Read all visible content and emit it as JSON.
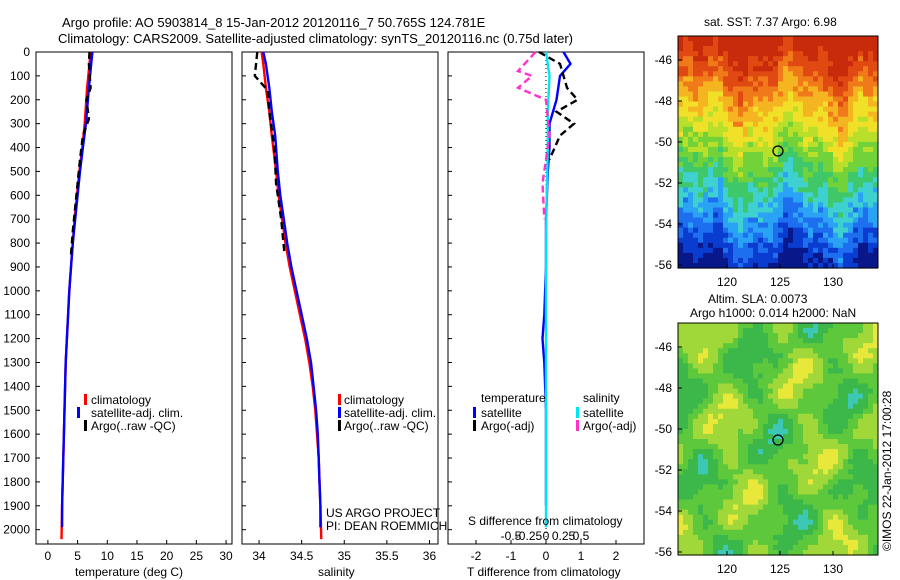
{
  "title_line1": "Argo profile: AO 5903814_8 15-Jan-2012 20120116_7 50.765S 124.781E",
  "title_line2": "Climatology: CARS2009. Satellite-adjusted climatology: synTS_20120116.nc (0.75d later)",
  "panel_depth_ticks": [
    "0",
    "100",
    "200",
    "300",
    "400",
    "500",
    "600",
    "700",
    "800",
    "900",
    "1000",
    "1100",
    "1200",
    "1300",
    "1400",
    "1500",
    "1600",
    "1700",
    "1800",
    "1900",
    "2000"
  ],
  "colors": {
    "climatology": "#ff0000",
    "satellite": "#0000ff",
    "argo": "#000000",
    "sal_satellite": "#00e5ee",
    "sal_argo": "#ff33cc"
  },
  "temp_panel": {
    "xlabel": "temperature (deg C)",
    "xticks": [
      "0",
      "5",
      "10",
      "15",
      "20",
      "25",
      "30"
    ],
    "legend": [
      "climatology",
      "satellite-adj. clim.",
      "Argo(..raw -QC)"
    ]
  },
  "sal_panel": {
    "xlabel": "salinity",
    "xticks": [
      "34",
      "34.5",
      "35",
      "35.5",
      "36"
    ],
    "legend": [
      "climatology",
      "satellite-adj. clim.",
      "Argo(..raw -QC)"
    ],
    "note1": "US ARGO PROJECT",
    "note2": "PI: DEAN ROEMMICH"
  },
  "diff_panel": {
    "xlabel": "T difference from climatology",
    "xlabel_top": "S difference from climatology",
    "t_ticks": [
      "-2",
      "-1",
      "0",
      "1",
      "2"
    ],
    "s_ticks": [
      "-0.5",
      "-0.25",
      "0",
      "0.25",
      "0.5"
    ],
    "legend_head_t": "temperature",
    "legend_head_s": "salinity",
    "legend_t": [
      "satellite",
      "Argo(-adj)"
    ],
    "legend_s": [
      "satellite",
      "Argo(-adj)"
    ]
  },
  "map_sst": {
    "title": "sat. SST: 7.37 Argo: 6.98",
    "yticks": [
      "-46",
      "-48",
      "-50",
      "-52",
      "-54",
      "-56"
    ],
    "xticks": [
      "120",
      "125",
      "130"
    ]
  },
  "map_sla": {
    "title1": "Altim. SLA: 0.0073",
    "title2": "Argo h1000: 0.014 h2000: NaN",
    "yticks": [
      "-46",
      "-48",
      "-50",
      "-52",
      "-54",
      "-56"
    ],
    "xticks": [
      "120",
      "125",
      "130"
    ],
    "stamp": "©IMOS 22-Jan-2012 17:00:28"
  },
  "chart_data": [
    {
      "type": "line",
      "xlabel": "temperature (deg C)",
      "ylabel": "",
      "xlim": [
        -2,
        31
      ],
      "ylim": [
        2060,
        0
      ],
      "series": [
        {
          "name": "climatology",
          "x": [
            7.2,
            7.0,
            6.6,
            6.2,
            5.8,
            5.3,
            4.9,
            4.5,
            4.2,
            3.9,
            3.6,
            3.4,
            3.2,
            3.0,
            2.9,
            2.8,
            2.7,
            2.6,
            2.5,
            2.4,
            2.3
          ],
          "y": [
            0,
            50,
            150,
            300,
            400,
            500,
            600,
            700,
            800,
            900,
            1000,
            1100,
            1200,
            1300,
            1400,
            1500,
            1600,
            1700,
            1800,
            1900,
            2040
          ]
        },
        {
          "name": "satellite-adj. clim.",
          "x": [
            7.5,
            7.3,
            6.9,
            6.4,
            5.9,
            5.4,
            5.0,
            4.6,
            4.2,
            3.9,
            3.6,
            3.4,
            3.2,
            3.0,
            2.9,
            2.8,
            2.7,
            2.6,
            2.5,
            2.4,
            2.4
          ],
          "y": [
            0,
            50,
            150,
            300,
            400,
            500,
            600,
            700,
            800,
            900,
            1000,
            1100,
            1200,
            1300,
            1400,
            1500,
            1600,
            1700,
            1800,
            1900,
            1990
          ]
        },
        {
          "name": "Argo(..raw -QC)",
          "x": [
            7.0,
            6.9,
            7.2,
            6.5,
            6.9,
            5.9,
            5.4,
            5.0,
            4.6,
            4.2,
            3.9
          ],
          "y": [
            0,
            50,
            150,
            200,
            280,
            350,
            450,
            550,
            650,
            750,
            850
          ]
        }
      ]
    },
    {
      "type": "line",
      "xlabel": "salinity",
      "ylabel": "",
      "xlim": [
        33.8,
        36.1
      ],
      "ylim": [
        2060,
        0
      ],
      "series": [
        {
          "name": "climatology",
          "x": [
            34.03,
            34.05,
            34.08,
            34.12,
            34.15,
            34.2,
            34.23,
            34.27,
            34.31,
            34.36,
            34.42,
            34.48,
            34.54,
            34.59,
            34.63,
            34.66,
            34.68,
            34.7,
            34.71,
            34.72,
            34.73
          ],
          "y": [
            0,
            50,
            150,
            250,
            350,
            500,
            600,
            700,
            800,
            900,
            1000,
            1100,
            1200,
            1300,
            1400,
            1500,
            1600,
            1700,
            1800,
            1900,
            2040
          ]
        },
        {
          "name": "satellite-adj. clim.",
          "x": [
            34.05,
            34.08,
            34.12,
            34.15,
            34.19,
            34.22,
            34.25,
            34.29,
            34.33,
            34.38,
            34.44,
            34.5,
            34.56,
            34.61,
            34.64,
            34.67,
            34.69,
            34.7,
            34.71,
            34.72,
            34.72
          ],
          "y": [
            0,
            50,
            150,
            250,
            350,
            500,
            600,
            700,
            800,
            900,
            1000,
            1100,
            1200,
            1300,
            1400,
            1500,
            1600,
            1700,
            1800,
            1900,
            1990
          ]
        },
        {
          "name": "Argo(..raw -QC)",
          "x": [
            33.98,
            33.95,
            34.1,
            34.12,
            34.18,
            34.2,
            34.26,
            34.3
          ],
          "y": [
            0,
            100,
            160,
            250,
            400,
            550,
            700,
            850
          ]
        }
      ]
    },
    {
      "type": "line",
      "xlabel": "T difference from climatology",
      "ylabel": "",
      "xlim": [
        -2.8,
        2.8
      ],
      "ylim": [
        2060,
        0
      ],
      "series": [
        {
          "name": "temperature satellite",
          "x": [
            0.5,
            0.7,
            0.4,
            0.3,
            0.1,
            0.1,
            0.05,
            0.0,
            0.0,
            -0.05,
            -0.1,
            -0.05,
            0.0,
            0.0
          ],
          "y": [
            0,
            50,
            100,
            200,
            300,
            400,
            500,
            700,
            900,
            1100,
            1200,
            1300,
            1500,
            1900
          ]
        },
        {
          "name": "temperature Argo(-adj)",
          "x": [
            -0.2,
            0.4,
            0.6,
            0.9,
            0.3,
            0.8,
            0.4,
            0.1
          ],
          "y": [
            0,
            50,
            150,
            200,
            250,
            300,
            350,
            450
          ]
        },
        {
          "name": "salinity satellite",
          "x": [
            0.0,
            0.1,
            0.05,
            0.05,
            0.02,
            0.0,
            0.0,
            0.0
          ],
          "y": [
            0,
            100,
            250,
            400,
            600,
            800,
            1300,
            1990
          ]
        },
        {
          "name": "salinity Argo(-adj)",
          "x": [
            -0.3,
            -0.8,
            -0.4,
            -0.8,
            0.0,
            0.1,
            -0.1,
            -0.05
          ],
          "y": [
            0,
            80,
            100,
            150,
            200,
            350,
            550,
            700
          ]
        }
      ]
    }
  ]
}
